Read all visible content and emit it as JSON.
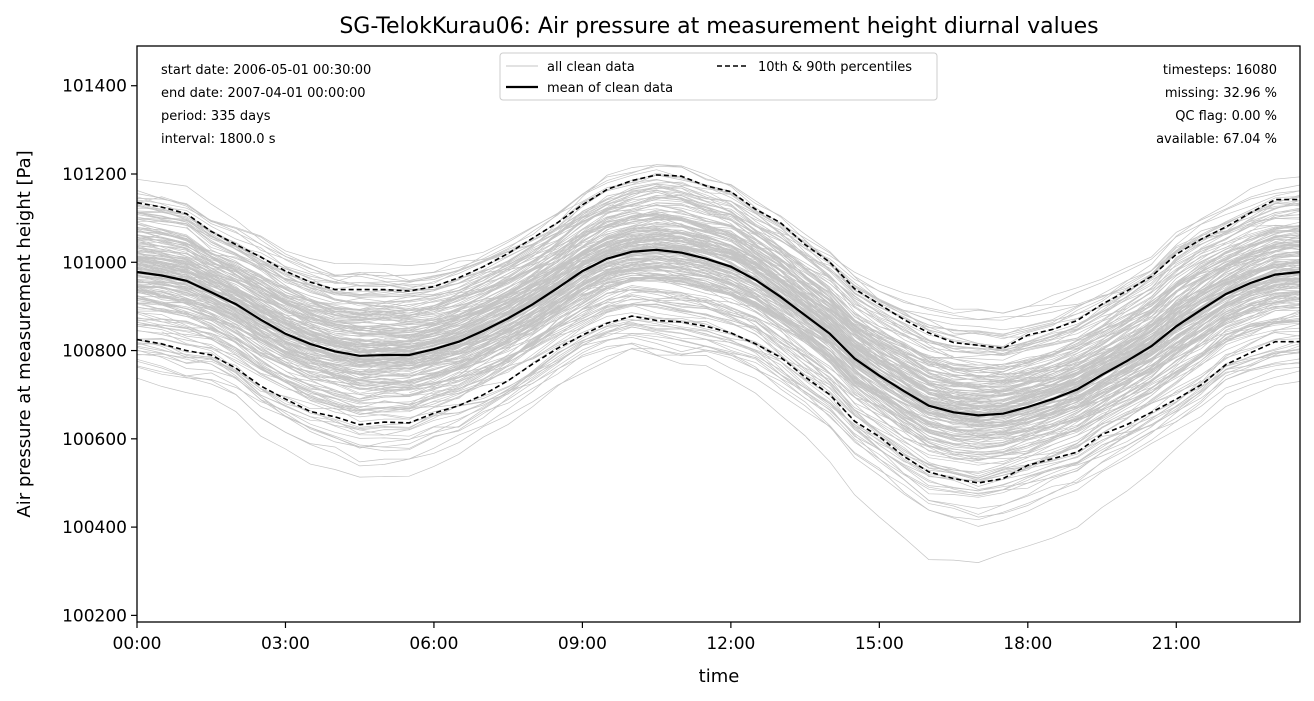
{
  "chart_data": {
    "type": "line",
    "title": "SG-TelokKurau06: Air pressure at measurement height diurnal values",
    "xlabel": "time",
    "ylabel": "Air pressure at measurement height [Pa]",
    "x_ticks": [
      "00:00",
      "03:00",
      "06:00",
      "09:00",
      "12:00",
      "15:00",
      "18:00",
      "21:00"
    ],
    "y_ticks": [
      "100200",
      "100400",
      "100600",
      "100800",
      "101000",
      "101200",
      "101400"
    ],
    "xlim_hours": [
      0,
      23.5
    ],
    "ylim": [
      100185,
      101490
    ],
    "grid": false,
    "legend_position": "top-center",
    "stats_left": [
      "start date: 2006-05-01 00:30:00",
      "end date: 2007-04-01 00:00:00",
      "period: 335 days",
      "interval: 1800.0 s"
    ],
    "stats_right": [
      "timesteps: 16080",
      "missing: 32.96 %",
      "QC flag: 0.00 %",
      "available: 67.04 %"
    ],
    "legend": [
      {
        "label": "all clean data",
        "style": "thin-grey"
      },
      {
        "label": "mean of clean data",
        "style": "solid-black"
      },
      {
        "label": "10th & 90th percentiles",
        "style": "dashed-black"
      }
    ],
    "colors": {
      "individual": "#c4c4c4",
      "mean": "#000000",
      "percentile": "#000000"
    },
    "x_hours": [
      0,
      0.5,
      1,
      1.5,
      2,
      2.5,
      3,
      3.5,
      4,
      4.5,
      5,
      5.5,
      6,
      6.5,
      7,
      7.5,
      8,
      8.5,
      9,
      9.5,
      10,
      10.5,
      11,
      11.5,
      12,
      12.5,
      13,
      13.5,
      14,
      14.5,
      15,
      15.5,
      16,
      16.5,
      17,
      17.5,
      18,
      18.5,
      19,
      19.5,
      20,
      20.5,
      21,
      21.5,
      22,
      22.5,
      23,
      23.5
    ],
    "series": [
      {
        "name": "mean of clean data",
        "values": [
          100978,
          100970,
          100958,
          100932,
          100905,
          100870,
          100838,
          100815,
          100798,
          100788,
          100790,
          100790,
          100803,
          100820,
          100845,
          100873,
          100905,
          100942,
          100980,
          101008,
          101024,
          101028,
          101022,
          101008,
          100990,
          100960,
          100922,
          100880,
          100838,
          100782,
          100743,
          100708,
          100675,
          100660,
          100653,
          100657,
          100672,
          100690,
          100712,
          100745,
          100776,
          100810,
          100855,
          100892,
          100928,
          100953,
          100972,
          100978
        ]
      },
      {
        "name": "90th percentile",
        "values": [
          101135,
          101125,
          101110,
          101070,
          101040,
          101012,
          100980,
          100955,
          100938,
          100938,
          100938,
          100935,
          100945,
          100965,
          100990,
          101020,
          101055,
          101090,
          101130,
          101165,
          101185,
          101198,
          101195,
          101173,
          101160,
          101120,
          101090,
          101040,
          101000,
          100940,
          100905,
          100870,
          100840,
          100818,
          100812,
          100805,
          100835,
          100848,
          100868,
          100905,
          100935,
          100968,
          101018,
          101052,
          101080,
          101112,
          101142,
          101142
        ]
      },
      {
        "name": "10th percentile",
        "values": [
          100825,
          100815,
          100800,
          100790,
          100760,
          100720,
          100690,
          100662,
          100650,
          100632,
          100638,
          100636,
          100658,
          100675,
          100700,
          100732,
          100770,
          100805,
          100835,
          100862,
          100878,
          100868,
          100865,
          100855,
          100840,
          100815,
          100785,
          100740,
          100700,
          100640,
          100605,
          100560,
          100525,
          100510,
          100500,
          100510,
          100540,
          100555,
          100570,
          100610,
          100632,
          100660,
          100690,
          100722,
          100768,
          100795,
          100820,
          100820
        ]
      }
    ]
  }
}
